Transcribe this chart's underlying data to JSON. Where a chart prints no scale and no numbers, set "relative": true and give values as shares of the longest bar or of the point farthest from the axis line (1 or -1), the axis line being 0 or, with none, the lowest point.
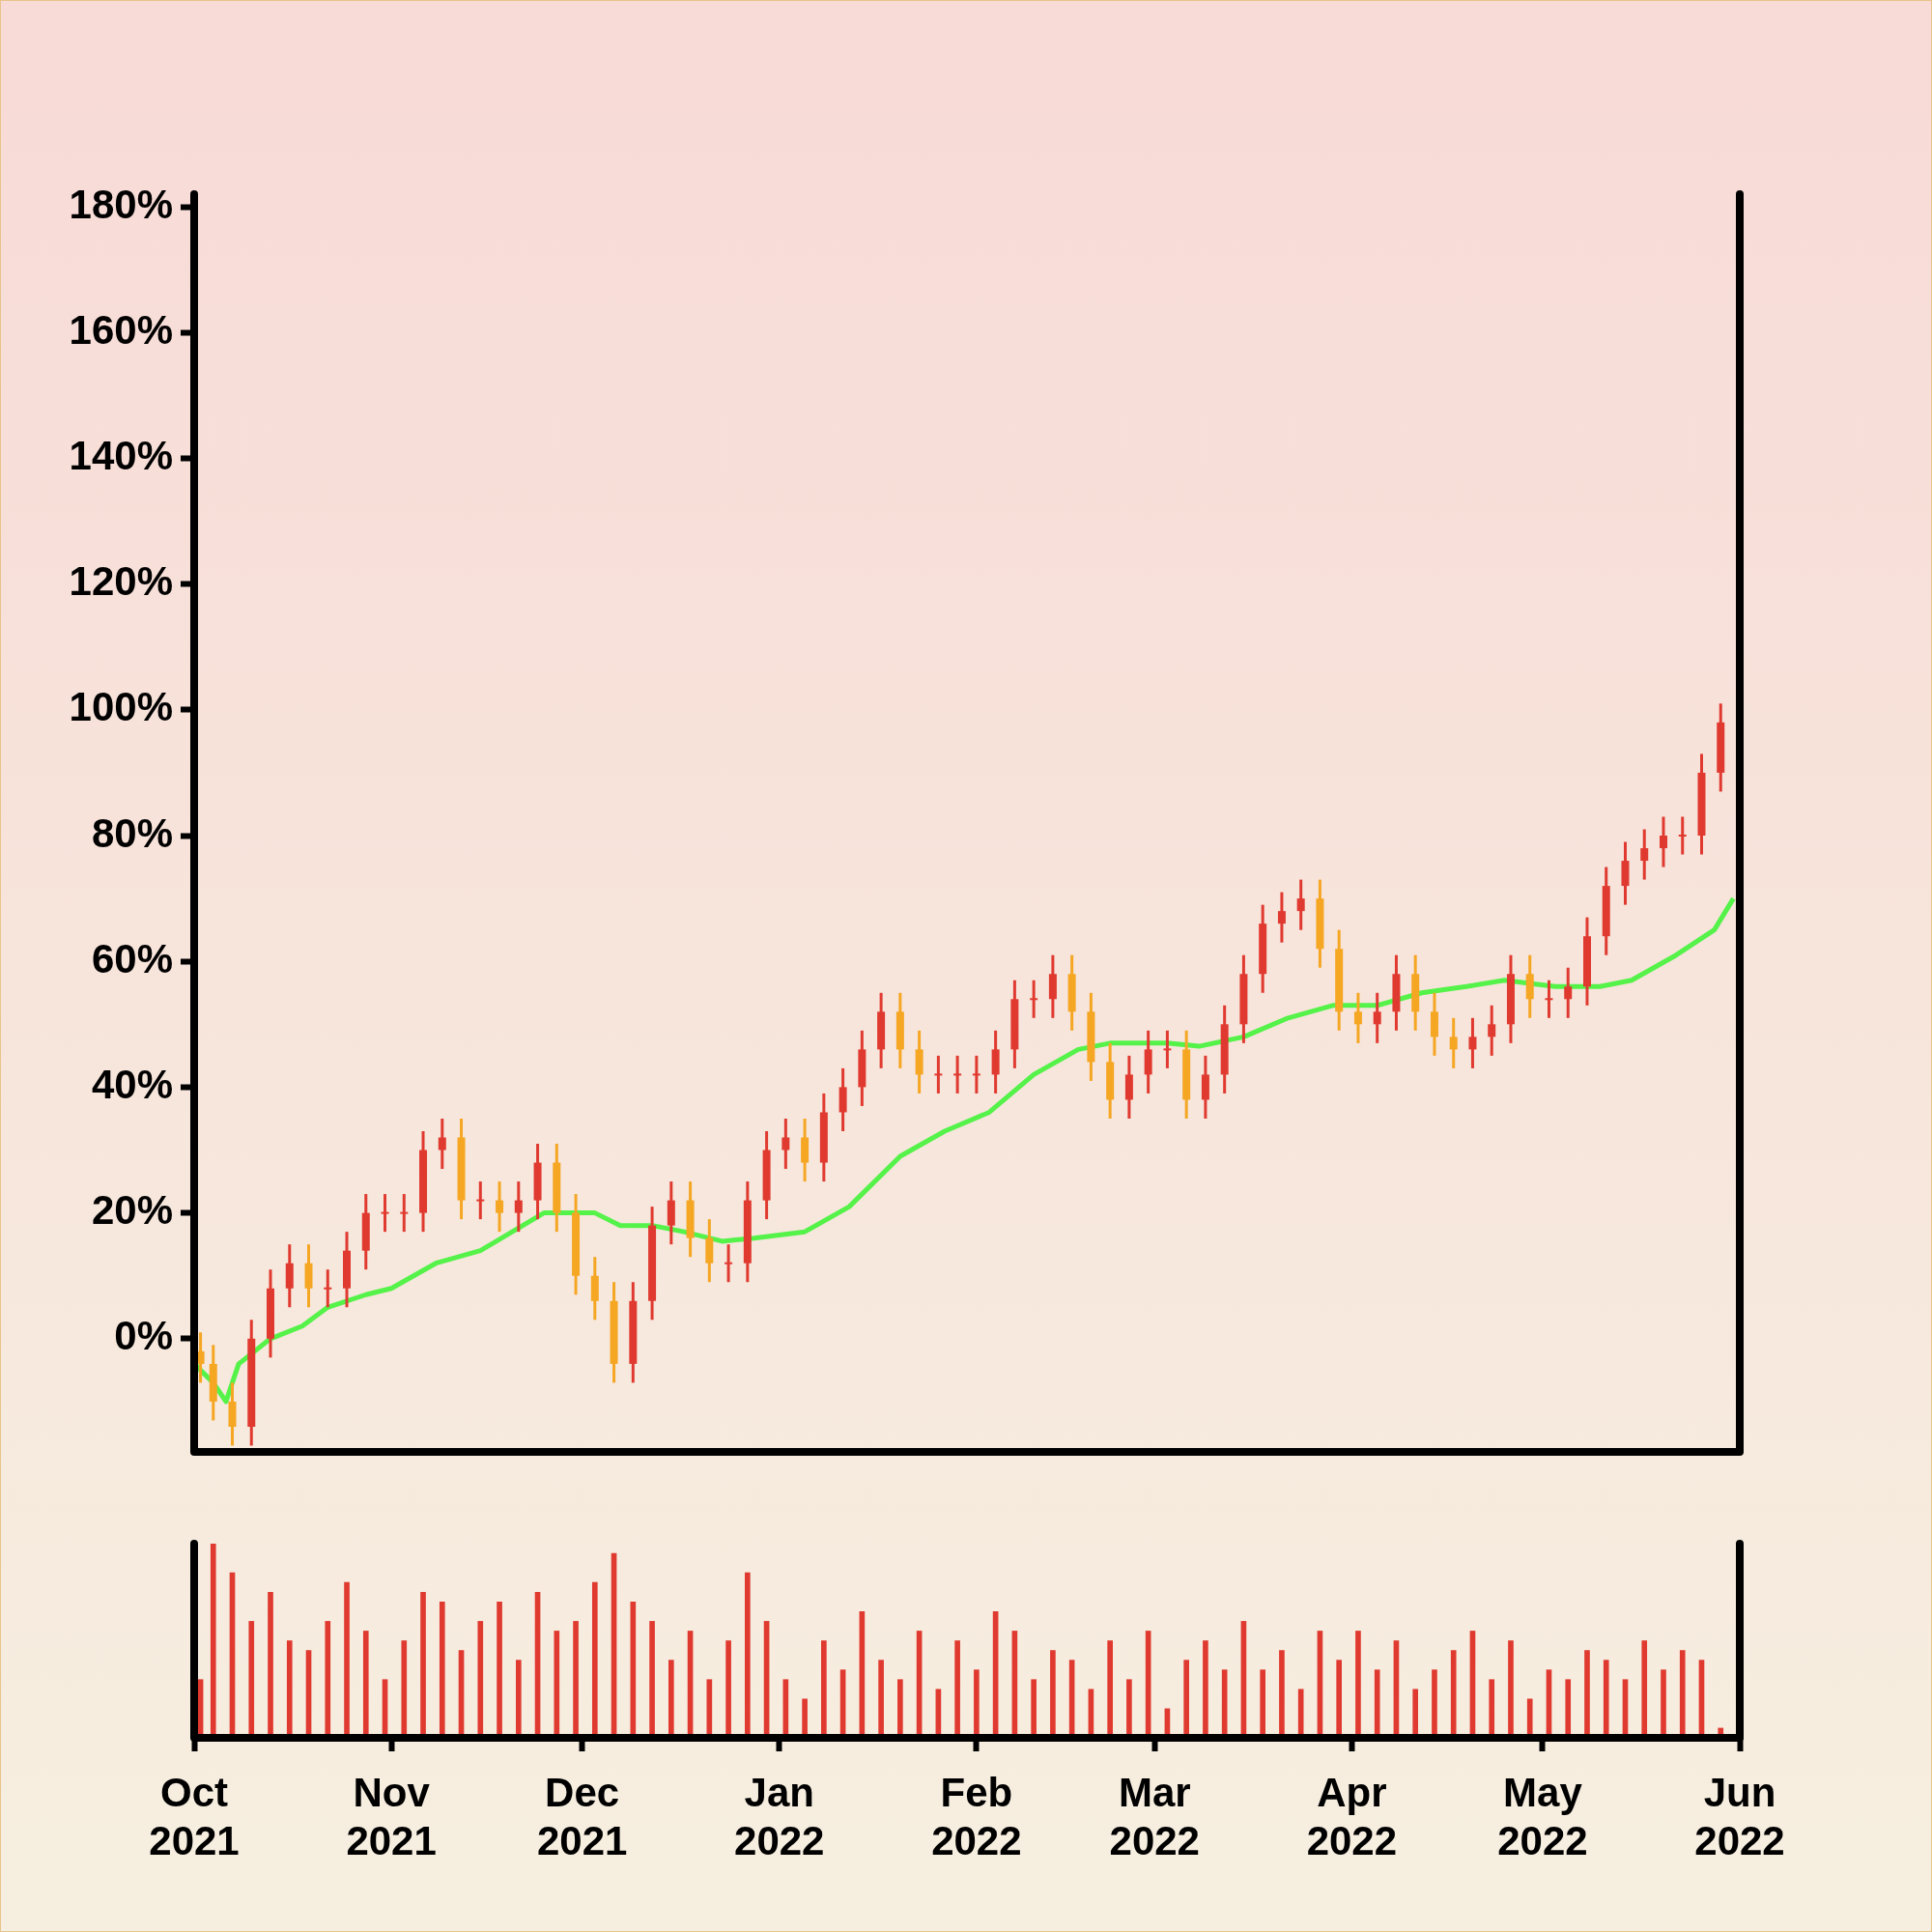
{
  "chart_data": [
    {
      "type": "candlestick",
      "tick_labels": "y",
      "xlim": [
        "2021-10-01",
        "2022-06-01"
      ],
      "ylim": [
        -18,
        182
      ],
      "yticks": [
        {
          "value": 0,
          "label": "0%"
        },
        {
          "value": 20,
          "label": "20%"
        },
        {
          "value": 40,
          "label": "40%"
        },
        {
          "value": 60,
          "label": "60%"
        },
        {
          "value": 80,
          "label": "80%"
        },
        {
          "value": 100,
          "label": "100%"
        },
        {
          "value": 120,
          "label": "120%"
        },
        {
          "value": 140,
          "label": "140%"
        },
        {
          "value": 160,
          "label": "160%"
        },
        {
          "value": 180,
          "label": "180%"
        }
      ],
      "x": [
        "2021-10-02",
        "2021-10-04",
        "2021-10-07",
        "2021-10-10",
        "2021-10-13",
        "2021-10-16",
        "2021-10-19",
        "2021-10-22",
        "2021-10-25",
        "2021-10-28",
        "2021-10-31",
        "2021-11-03",
        "2021-11-06",
        "2021-11-09",
        "2021-11-12",
        "2021-11-15",
        "2021-11-18",
        "2021-11-21",
        "2021-11-24",
        "2021-11-27",
        "2021-11-30",
        "2021-12-03",
        "2021-12-06",
        "2021-12-09",
        "2021-12-12",
        "2021-12-15",
        "2021-12-18",
        "2021-12-21",
        "2021-12-24",
        "2021-12-27",
        "2021-12-30",
        "2022-01-02",
        "2022-01-05",
        "2022-01-08",
        "2022-01-11",
        "2022-01-14",
        "2022-01-17",
        "2022-01-20",
        "2022-01-23",
        "2022-01-26",
        "2022-01-29",
        "2022-02-01",
        "2022-02-04",
        "2022-02-07",
        "2022-02-10",
        "2022-02-13",
        "2022-02-16",
        "2022-02-19",
        "2022-02-22",
        "2022-02-25",
        "2022-02-28",
        "2022-03-03",
        "2022-03-06",
        "2022-03-09",
        "2022-03-12",
        "2022-03-15",
        "2022-03-18",
        "2022-03-21",
        "2022-03-24",
        "2022-03-27",
        "2022-03-30",
        "2022-04-02",
        "2022-04-05",
        "2022-04-08",
        "2022-04-11",
        "2022-04-14",
        "2022-04-17",
        "2022-04-20",
        "2022-04-23",
        "2022-04-26",
        "2022-04-29",
        "2022-05-02",
        "2022-05-05",
        "2022-05-08",
        "2022-05-11",
        "2022-05-14",
        "2022-05-17",
        "2022-05-20",
        "2022-05-23",
        "2022-05-26",
        "2022-05-29"
      ],
      "ohlc": [
        [
          -2,
          1,
          -7,
          -4
        ],
        [
          -4,
          -1,
          -13,
          -10
        ],
        [
          -10,
          -7,
          -17,
          -14
        ],
        [
          -14,
          3,
          -17,
          0
        ],
        [
          0,
          11,
          -3,
          8
        ],
        [
          8,
          15,
          5,
          12
        ],
        [
          12,
          15,
          5,
          8
        ],
        [
          8,
          11,
          5,
          8
        ],
        [
          8,
          17,
          5,
          14
        ],
        [
          14,
          23,
          11,
          20
        ],
        [
          20,
          23,
          17,
          20
        ],
        [
          20,
          23,
          17,
          20
        ],
        [
          20,
          33,
          17,
          30
        ],
        [
          30,
          35,
          27,
          32
        ],
        [
          32,
          35,
          19,
          22
        ],
        [
          22,
          25,
          19,
          22
        ],
        [
          22,
          25,
          17,
          20
        ],
        [
          20,
          25,
          17,
          22
        ],
        [
          22,
          31,
          19,
          28
        ],
        [
          28,
          31,
          17,
          20
        ],
        [
          20,
          23,
          7,
          10
        ],
        [
          10,
          13,
          3,
          6
        ],
        [
          6,
          9,
          -7,
          -4
        ],
        [
          -4,
          9,
          -7,
          6
        ],
        [
          6,
          21,
          3,
          18
        ],
        [
          18,
          25,
          15,
          22
        ],
        [
          22,
          25,
          13,
          16
        ],
        [
          16,
          19,
          9,
          12
        ],
        [
          12,
          15,
          9,
          12
        ],
        [
          12,
          25,
          9,
          22
        ],
        [
          22,
          33,
          19,
          30
        ],
        [
          30,
          35,
          27,
          32
        ],
        [
          32,
          35,
          25,
          28
        ],
        [
          28,
          39,
          25,
          36
        ],
        [
          36,
          43,
          33,
          40
        ],
        [
          40,
          49,
          37,
          46
        ],
        [
          46,
          55,
          43,
          52
        ],
        [
          52,
          55,
          43,
          46
        ],
        [
          46,
          49,
          39,
          42
        ],
        [
          42,
          45,
          39,
          42
        ],
        [
          42,
          45,
          39,
          42
        ],
        [
          42,
          45,
          39,
          42
        ],
        [
          42,
          49,
          39,
          46
        ],
        [
          46,
          57,
          43,
          54
        ],
        [
          54,
          57,
          51,
          54
        ],
        [
          54,
          61,
          51,
          58
        ],
        [
          58,
          61,
          49,
          52
        ],
        [
          52,
          55,
          41,
          44
        ],
        [
          44,
          47,
          35,
          38
        ],
        [
          38,
          45,
          35,
          42
        ],
        [
          42,
          49,
          39,
          46
        ],
        [
          46,
          49,
          43,
          46
        ],
        [
          46,
          49,
          35,
          38
        ],
        [
          38,
          45,
          35,
          42
        ],
        [
          42,
          53,
          39,
          50
        ],
        [
          50,
          61,
          47,
          58
        ],
        [
          58,
          69,
          55,
          66
        ],
        [
          66,
          71,
          63,
          68
        ],
        [
          68,
          73,
          65,
          70
        ],
        [
          70,
          73,
          59,
          62
        ],
        [
          62,
          65,
          49,
          52
        ],
        [
          52,
          55,
          47,
          50
        ],
        [
          50,
          55,
          47,
          52
        ],
        [
          52,
          61,
          49,
          58
        ],
        [
          58,
          61,
          49,
          52
        ],
        [
          52,
          55,
          45,
          48
        ],
        [
          48,
          51,
          43,
          46
        ],
        [
          46,
          51,
          43,
          48
        ],
        [
          48,
          53,
          45,
          50
        ],
        [
          50,
          61,
          47,
          58
        ],
        [
          58,
          61,
          51,
          54
        ],
        [
          54,
          57,
          51,
          54
        ],
        [
          54,
          59,
          51,
          56
        ],
        [
          56,
          67,
          53,
          64
        ],
        [
          64,
          75,
          61,
          72
        ],
        [
          72,
          79,
          69,
          76
        ],
        [
          76,
          81,
          73,
          78
        ],
        [
          78,
          83,
          75,
          80
        ],
        [
          80,
          83,
          77,
          80
        ],
        [
          80,
          93,
          77,
          90
        ],
        [
          90,
          101,
          87,
          98
        ]
      ],
      "colors": [
        "#f5a623",
        "#f5a623",
        "#f5a623",
        "#e03a30",
        "#e03a30",
        "#e03a30",
        "#f5a623",
        "#e03a30",
        "#e03a30",
        "#e03a30",
        "#e03a30",
        "#e03a30",
        "#e03a30",
        "#e03a30",
        "#f5a623",
        "#e03a30",
        "#f5a623",
        "#e03a30",
        "#e03a30",
        "#f5a623",
        "#f5a623",
        "#f5a623",
        "#f5a623",
        "#e03a30",
        "#e03a30",
        "#e03a30",
        "#f5a623",
        "#f5a623",
        "#e03a30",
        "#e03a30",
        "#e03a30",
        "#e03a30",
        "#f5a623",
        "#e03a30",
        "#e03a30",
        "#e03a30",
        "#e03a30",
        "#f5a623",
        "#f5a623",
        "#e03a30",
        "#e03a30",
        "#e03a30",
        "#e03a30",
        "#e03a30",
        "#e03a30",
        "#e03a30",
        "#f5a623",
        "#f5a623",
        "#f5a623",
        "#e03a30",
        "#e03a30",
        "#e03a30",
        "#f5a623",
        "#e03a30",
        "#e03a30",
        "#e03a30",
        "#e03a30",
        "#e03a30",
        "#e03a30",
        "#f5a623",
        "#f5a623",
        "#f5a623",
        "#e03a30",
        "#e03a30",
        "#f5a623",
        "#f5a623",
        "#f5a623",
        "#e03a30",
        "#e03a30",
        "#e03a30",
        "#f5a623",
        "#e03a30",
        "#e03a30",
        "#e03a30",
        "#e03a30",
        "#e03a30",
        "#e03a30",
        "#e03a30",
        "#e03a30",
        "#e03a30",
        "#e03a30"
      ],
      "series": [
        {
          "type": "line",
          "color": "#55f24a",
          "x": [
            "2021-10-01",
            "2021-10-04",
            "2021-10-06",
            "2021-10-08",
            "2021-10-13",
            "2021-10-18",
            "2021-10-22",
            "2021-10-28",
            "2021-11-01",
            "2021-11-08",
            "2021-11-15",
            "2021-11-20",
            "2021-11-25",
            "2021-12-03",
            "2021-12-07",
            "2021-12-12",
            "2021-12-17",
            "2021-12-23",
            "2021-12-28",
            "2022-01-05",
            "2022-01-12",
            "2022-01-20",
            "2022-01-27",
            "2022-02-03",
            "2022-02-10",
            "2022-02-17",
            "2022-02-22",
            "2022-03-03",
            "2022-03-08",
            "2022-03-15",
            "2022-03-22",
            "2022-03-29",
            "2022-04-05",
            "2022-04-12",
            "2022-04-19",
            "2022-04-25",
            "2022-05-03",
            "2022-05-10",
            "2022-05-15",
            "2022-05-22",
            "2022-05-28",
            "2022-05-31"
          ],
          "values": [
            -4,
            -7,
            -10,
            -4,
            0,
            2,
            5,
            7,
            8,
            12,
            14,
            17,
            20,
            20,
            18,
            18,
            17,
            15.5,
            16,
            17,
            21,
            29,
            33,
            36,
            42,
            46,
            47,
            47,
            46.5,
            48,
            51,
            53,
            53,
            55,
            56,
            57,
            56,
            56,
            57,
            61,
            65,
            70
          ]
        }
      ]
    },
    {
      "type": "bar",
      "relative": true,
      "tick_labels": "x",
      "color": "#e03a30",
      "xlim": [
        "2021-10-01",
        "2022-06-01"
      ],
      "xticks": [
        {
          "value": "2021-10-01",
          "label": "Oct 2021"
        },
        {
          "value": "2021-11-01",
          "label": "Nov 2021"
        },
        {
          "value": "2021-12-01",
          "label": "Dec 2021"
        },
        {
          "value": "2022-01-01",
          "label": "Jan 2022"
        },
        {
          "value": "2022-02-01",
          "label": "Feb 2022"
        },
        {
          "value": "2022-03-01",
          "label": "Mar 2022"
        },
        {
          "value": "2022-04-01",
          "label": "Apr 2022"
        },
        {
          "value": "2022-05-01",
          "label": "May 2022"
        },
        {
          "value": "2022-06-01",
          "label": "Jun 2022"
        }
      ],
      "x": [
        "2021-10-02",
        "2021-10-04",
        "2021-10-07",
        "2021-10-10",
        "2021-10-13",
        "2021-10-16",
        "2021-10-19",
        "2021-10-22",
        "2021-10-25",
        "2021-10-28",
        "2021-10-31",
        "2021-11-03",
        "2021-11-06",
        "2021-11-09",
        "2021-11-12",
        "2021-11-15",
        "2021-11-18",
        "2021-11-21",
        "2021-11-24",
        "2021-11-27",
        "2021-11-30",
        "2021-12-03",
        "2021-12-06",
        "2021-12-09",
        "2021-12-12",
        "2021-12-15",
        "2021-12-18",
        "2021-12-21",
        "2021-12-24",
        "2021-12-27",
        "2021-12-30",
        "2022-01-02",
        "2022-01-05",
        "2022-01-08",
        "2022-01-11",
        "2022-01-14",
        "2022-01-17",
        "2022-01-20",
        "2022-01-23",
        "2022-01-26",
        "2022-01-29",
        "2022-02-01",
        "2022-02-04",
        "2022-02-07",
        "2022-02-10",
        "2022-02-13",
        "2022-02-16",
        "2022-02-19",
        "2022-02-22",
        "2022-02-25",
        "2022-02-28",
        "2022-03-03",
        "2022-03-06",
        "2022-03-09",
        "2022-03-12",
        "2022-03-15",
        "2022-03-18",
        "2022-03-21",
        "2022-03-24",
        "2022-03-27",
        "2022-03-30",
        "2022-04-02",
        "2022-04-05",
        "2022-04-08",
        "2022-04-11",
        "2022-04-14",
        "2022-04-17",
        "2022-04-20",
        "2022-04-23",
        "2022-04-26",
        "2022-04-29",
        "2022-05-02",
        "2022-05-05",
        "2022-05-08",
        "2022-05-11",
        "2022-05-14",
        "2022-05-17",
        "2022-05-20",
        "2022-05-23",
        "2022-05-26",
        "2022-05-29"
      ],
      "values": [
        0.3,
        1.0,
        0.85,
        0.6,
        0.75,
        0.5,
        0.45,
        0.6,
        0.8,
        0.55,
        0.3,
        0.5,
        0.75,
        0.7,
        0.45,
        0.6,
        0.7,
        0.4,
        0.75,
        0.55,
        0.6,
        0.8,
        0.95,
        0.7,
        0.6,
        0.4,
        0.55,
        0.3,
        0.5,
        0.85,
        0.6,
        0.3,
        0.2,
        0.5,
        0.35,
        0.65,
        0.4,
        0.3,
        0.55,
        0.25,
        0.5,
        0.35,
        0.65,
        0.55,
        0.3,
        0.45,
        0.4,
        0.25,
        0.5,
        0.3,
        0.55,
        0.15,
        0.4,
        0.5,
        0.35,
        0.6,
        0.35,
        0.45,
        0.25,
        0.55,
        0.4,
        0.55,
        0.35,
        0.5,
        0.25,
        0.35,
        0.45,
        0.55,
        0.3,
        0.5,
        0.2,
        0.35,
        0.3,
        0.45,
        0.4,
        0.3,
        0.5,
        0.35,
        0.45,
        0.4,
        0.05
      ]
    }
  ]
}
